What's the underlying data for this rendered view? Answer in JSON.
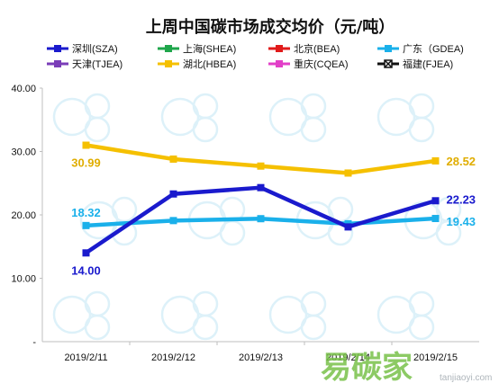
{
  "chart_data": {
    "type": "line",
    "title": "上周中国碳市场成交均价（元/吨）",
    "categories": [
      "2019/2/11",
      "2019/2/12",
      "2019/2/13",
      "2019/2/14",
      "2019/2/15"
    ],
    "y_ticks": [
      "40.00",
      "30.00",
      "20.00",
      "10.00",
      "-"
    ],
    "ylim": [
      0,
      40
    ],
    "grid": false,
    "legend_position": "top",
    "legend": [
      {
        "name": "深圳(SZA)",
        "color": "#1a1acd",
        "marker": "square"
      },
      {
        "name": "上海(SHEA)",
        "color": "#1fa64b",
        "marker": "square"
      },
      {
        "name": "北京(BEA)",
        "color": "#e11a1a",
        "marker": "square"
      },
      {
        "name": "广东（GDEA)",
        "color": "#1ab0ea",
        "marker": "square"
      },
      {
        "name": "天津(TJEA)",
        "color": "#7a3db8",
        "marker": "square"
      },
      {
        "name": "湖北(HBEA)",
        "color": "#f5c000",
        "marker": "square"
      },
      {
        "name": "重庆(CQEA)",
        "color": "#e23fc8",
        "marker": "square"
      },
      {
        "name": "福建(FJEA)",
        "color": "#111111",
        "marker": "cross"
      }
    ],
    "series": [
      {
        "name": "湖北(HBEA)",
        "color": "#f5c000",
        "values": [
          30.99,
          28.8,
          27.7,
          26.6,
          28.52
        ]
      },
      {
        "name": "广东（GDEA)",
        "color": "#1ab0ea",
        "values": [
          18.32,
          19.1,
          19.4,
          18.6,
          19.43
        ]
      },
      {
        "name": "深圳(SZA)",
        "color": "#1a1acd",
        "values": [
          14.0,
          23.3,
          24.3,
          18.1,
          22.23
        ]
      }
    ],
    "data_labels": [
      {
        "text": "30.99",
        "series": 0,
        "index": 0,
        "color": "#e0ad00"
      },
      {
        "text": "28.52",
        "series": 0,
        "index": 4,
        "color": "#e0ad00"
      },
      {
        "text": "18.32",
        "series": 1,
        "index": 0,
        "color": "#1ab0ea"
      },
      {
        "text": "19.43",
        "series": 1,
        "index": 4,
        "color": "#1ab0ea"
      },
      {
        "text": "14.00",
        "series": 2,
        "index": 0,
        "color": "#1a1acd"
      },
      {
        "text": "22.23",
        "series": 2,
        "index": 4,
        "color": "#1a1acd"
      }
    ]
  },
  "watermark": {
    "brand": "易碳家",
    "url": "tanjiaoyi.com"
  }
}
